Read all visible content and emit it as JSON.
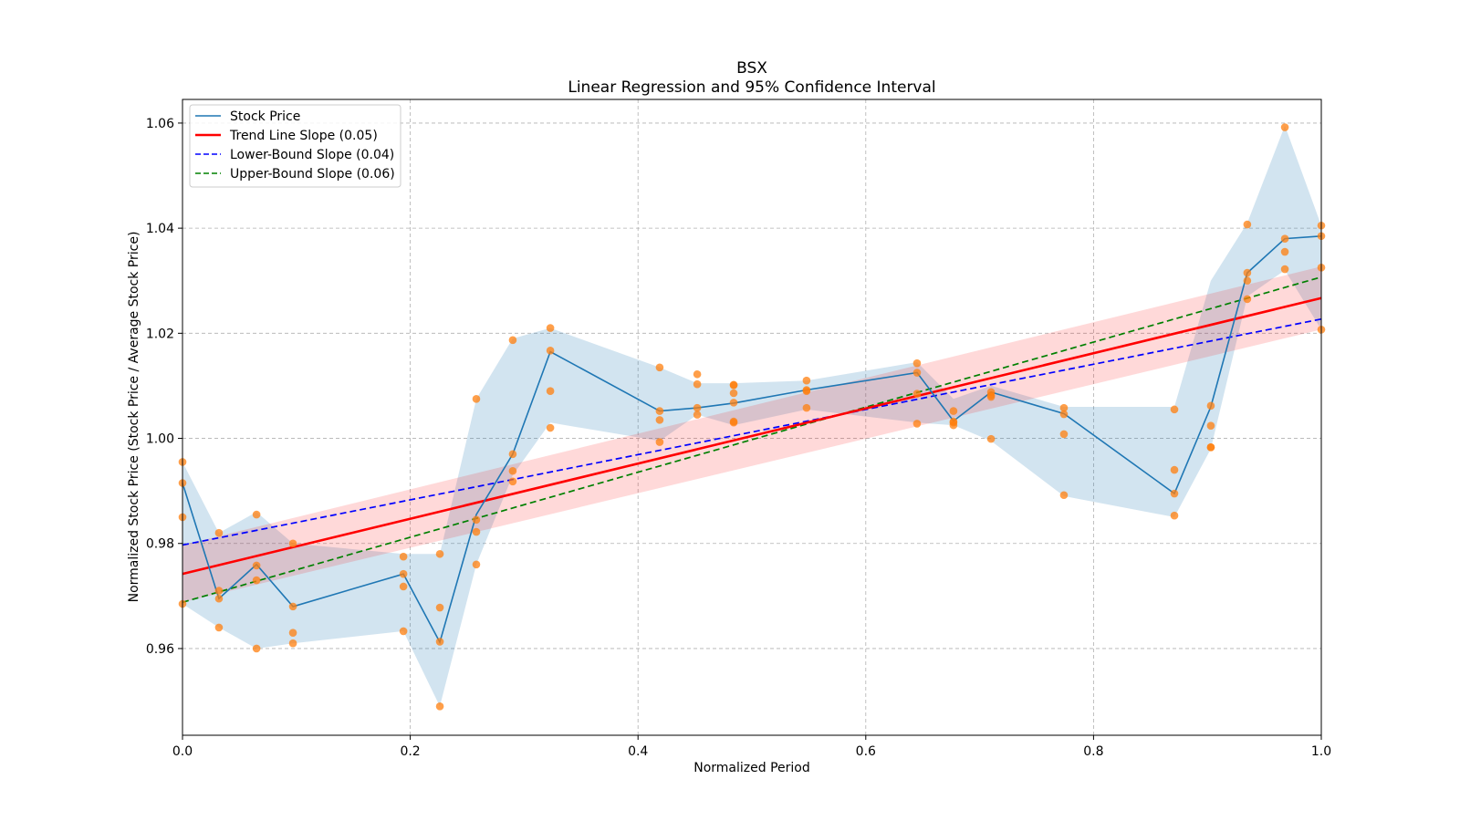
{
  "chart_data": {
    "type": "line",
    "title": "BSX",
    "subtitle": "Linear Regression and 95% Confidence Interval",
    "xlabel": "Normalized Period",
    "ylabel": "Normalized Stock Price (Stock Price / Average Stock Price)",
    "xlim": [
      0,
      1
    ],
    "ylim": [
      0.9435,
      1.0645
    ],
    "xticks": [
      0.0,
      0.2,
      0.4,
      0.6,
      0.8,
      1.0
    ],
    "xtick_labels": [
      "0.0",
      "0.2",
      "0.4",
      "0.6",
      "0.8",
      "1.0"
    ],
    "yticks": [
      0.96,
      0.98,
      1.0,
      1.02,
      1.04,
      1.06
    ],
    "ytick_labels": [
      "0.96",
      "0.98",
      "1.00",
      "1.02",
      "1.04",
      "1.06"
    ],
    "grid": true,
    "legend_position": "top-left",
    "legend": [
      {
        "label": "Stock Price",
        "color": "#1f77b4",
        "style": "solid"
      },
      {
        "label": "Trend Line Slope (0.05)",
        "color": "#ff0000",
        "style": "solid"
      },
      {
        "label": "Lower-Bound Slope (0.04)",
        "color": "#0000ff",
        "style": "dashed"
      },
      {
        "label": "Upper-Bound Slope (0.06)",
        "color": "#008000",
        "style": "dashed"
      }
    ],
    "stock_price": {
      "x": [
        0.0,
        0.032,
        0.065,
        0.097,
        0.194,
        0.226,
        0.258,
        0.29,
        0.323,
        0.419,
        0.452,
        0.484,
        0.548,
        0.645,
        0.677,
        0.71,
        0.774,
        0.871,
        0.903,
        0.935,
        0.968,
        1.0
      ],
      "y": [
        0.9915,
        0.9695,
        0.976,
        0.968,
        0.9742,
        0.9612,
        0.9855,
        0.997,
        1.0165,
        1.0052,
        1.0058,
        1.0067,
        1.0092,
        1.0125,
        1.0033,
        1.0088,
        1.0047,
        0.9895,
        1.006,
        1.0315,
        1.038,
        1.0385
      ]
    },
    "stock_band": {
      "x": [
        0.0,
        0.032,
        0.065,
        0.097,
        0.194,
        0.226,
        0.258,
        0.29,
        0.323,
        0.419,
        0.452,
        0.484,
        0.548,
        0.645,
        0.677,
        0.71,
        0.774,
        0.871,
        0.903,
        0.935,
        0.968,
        1.0
      ],
      "lower": [
        0.9685,
        0.964,
        0.96,
        0.961,
        0.9633,
        0.949,
        0.976,
        0.993,
        1.003,
        0.9995,
        1.0045,
        1.0025,
        1.0055,
        1.003,
        1.0025,
        0.9995,
        0.989,
        0.985,
        0.998,
        1.027,
        1.032,
        1.0207
      ]
    },
    "stock_band_upper": [
      0.9955,
      0.982,
      0.986,
      0.98,
      0.978,
      0.978,
      1.0075,
      1.019,
      1.021,
      1.0135,
      1.0105,
      1.0105,
      1.011,
      1.0145,
      1.0075,
      1.01,
      1.006,
      1.006,
      1.03,
      1.041,
      1.0595,
      1.0405
    ],
    "scatter_points": {
      "x": [
        0.0,
        0.0,
        0.0,
        0.0,
        0.032,
        0.032,
        0.032,
        0.032,
        0.065,
        0.065,
        0.065,
        0.065,
        0.097,
        0.097,
        0.097,
        0.097,
        0.194,
        0.194,
        0.194,
        0.194,
        0.226,
        0.226,
        0.226,
        0.226,
        0.258,
        0.258,
        0.258,
        0.258,
        0.29,
        0.29,
        0.29,
        0.29,
        0.323,
        0.323,
        0.323,
        0.323,
        0.419,
        0.419,
        0.419,
        0.419,
        0.452,
        0.452,
        0.452,
        0.452,
        0.484,
        0.484,
        0.484,
        0.484,
        0.484,
        0.484,
        0.548,
        0.548,
        0.548,
        0.548,
        0.645,
        0.645,
        0.645,
        0.645,
        0.677,
        0.677,
        0.677,
        0.677,
        0.71,
        0.71,
        0.71,
        0.71,
        0.774,
        0.774,
        0.774,
        0.774,
        0.871,
        0.871,
        0.871,
        0.871,
        0.903,
        0.903,
        0.903,
        0.903,
        0.935,
        0.935,
        0.935,
        0.935,
        0.968,
        0.968,
        0.968,
        0.968,
        1.0,
        1.0,
        1.0,
        1.0
      ],
      "y": [
        0.9955,
        0.9915,
        0.985,
        0.9685,
        0.982,
        0.971,
        0.9695,
        0.964,
        0.9855,
        0.9758,
        0.973,
        0.96,
        0.98,
        0.968,
        0.963,
        0.961,
        0.9775,
        0.9742,
        0.9718,
        0.9633,
        0.978,
        0.9678,
        0.9613,
        0.949,
        1.0075,
        0.9845,
        0.9822,
        0.976,
        1.0187,
        0.997,
        0.9938,
        0.9918,
        1.021,
        1.0167,
        1.009,
        1.002,
        1.0135,
        1.0052,
        1.0035,
        0.9993,
        1.0122,
        1.0103,
        1.0058,
        1.0045,
        1.0102,
        1.0101,
        1.0086,
        1.0068,
        1.0032,
        1.003,
        1.011,
        1.0092,
        1.009,
        1.0058,
        1.0143,
        1.0125,
        1.0085,
        1.0028,
        1.0052,
        1.0032,
        1.0025,
        1.003,
        1.0088,
        1.0082,
        1.0079,
        0.9999,
        1.0058,
        1.0046,
        1.0008,
        0.9892,
        1.0055,
        0.994,
        0.9895,
        0.9853,
        1.0062,
        1.0024,
        0.9983,
        0.9983,
        1.0407,
        1.0315,
        1.03,
        1.0265,
        1.0592,
        1.038,
        1.0355,
        1.0322,
        1.0405,
        1.0385,
        1.0325,
        1.0207
      ],
      "color": "#ff7f0e"
    },
    "trend_line": {
      "x": [
        0,
        1
      ],
      "y": [
        0.9742,
        1.0267
      ],
      "color": "#ff0000"
    },
    "trend_ci": {
      "x": [
        0,
        1
      ],
      "lower": [
        0.9688,
        1.0207
      ],
      "upper": [
        0.9797,
        1.0327
      ],
      "color": "#ffb6c1"
    },
    "lower_bound_line": {
      "x": [
        0,
        1
      ],
      "y": [
        0.9797,
        1.0227
      ],
      "color": "#0000ff"
    },
    "upper_bound_line": {
      "x": [
        0,
        1
      ],
      "y": [
        0.9688,
        1.0307
      ],
      "color": "#008000"
    }
  }
}
